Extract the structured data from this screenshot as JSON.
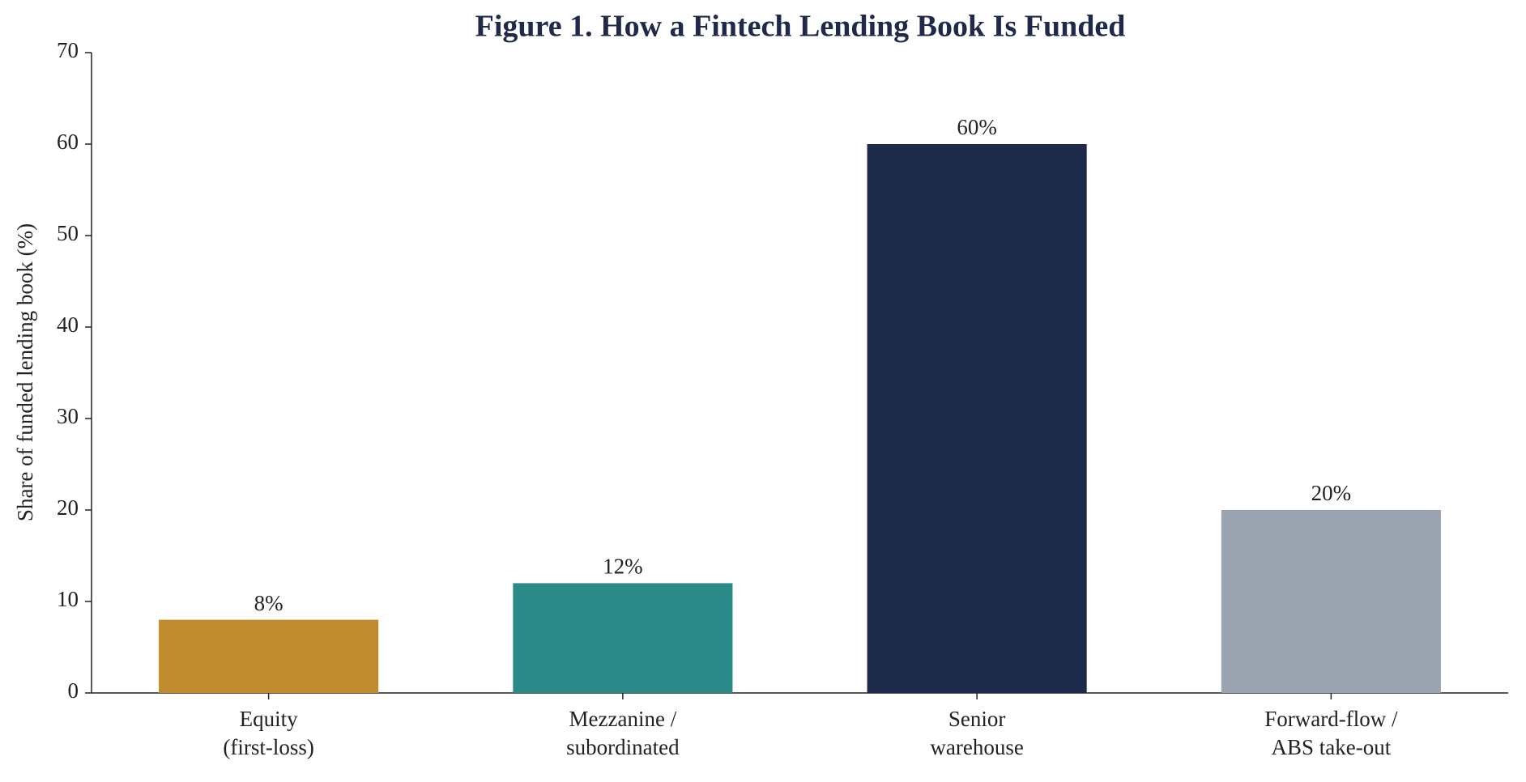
{
  "chart_data": {
    "type": "bar",
    "title": "Figure 1. How a Fintech Lending Book Is Funded",
    "y_label": "Share of funded lending book (%)",
    "categories": [
      "Equity\n(first-loss)",
      "Mezzanine /\nsubordinated",
      "Senior\nwarehouse",
      "Forward-flow /\nABS take-out"
    ],
    "values": [
      8,
      12,
      60,
      20
    ],
    "value_labels": [
      "8%",
      "12%",
      "60%",
      "20%"
    ],
    "colors": [
      "#c08a2e",
      "#2a8a88",
      "#1e2a4a",
      "#9aa4b1"
    ],
    "ylim": [
      0,
      70
    ],
    "yticks": [
      0,
      10,
      20,
      30,
      40,
      50,
      60,
      70
    ],
    "grid": false
  }
}
